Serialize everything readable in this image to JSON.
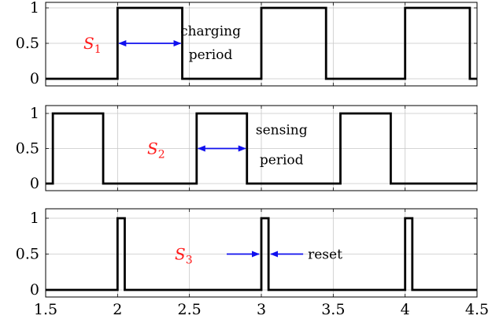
{
  "chart_data": {
    "type": "line",
    "x_ticks": [
      "1.5",
      "2",
      "2.5",
      "3",
      "3.5",
      "4",
      "4.5"
    ],
    "xlim": [
      1.5,
      4.5
    ],
    "grid": true,
    "colors": {
      "signal": "#000000",
      "arrow": "#1010ee",
      "label": "#ff1a1a"
    },
    "panels": [
      {
        "name": "S1",
        "ylim": [
          0,
          1
        ],
        "y_ticks": [
          "0",
          "0.5",
          "1"
        ],
        "label_main": "S",
        "label_sub": "1",
        "points": [
          [
            1.5,
            0
          ],
          [
            2.0,
            0
          ],
          [
            2.0,
            1
          ],
          [
            2.45,
            1
          ],
          [
            2.45,
            0
          ],
          [
            3.0,
            0
          ],
          [
            3.0,
            1
          ],
          [
            3.45,
            1
          ],
          [
            3.45,
            0
          ],
          [
            4.0,
            0
          ],
          [
            4.0,
            1
          ],
          [
            4.45,
            1
          ],
          [
            4.45,
            0
          ],
          [
            4.5,
            0
          ]
        ],
        "annotation": {
          "line1": "charging",
          "line2": "period",
          "arrow_from": 2.0,
          "arrow_to": 2.45,
          "arrow_y": 0.5
        }
      },
      {
        "name": "S2",
        "ylim": [
          0,
          1
        ],
        "y_ticks": [
          "0",
          "0.5",
          "1"
        ],
        "label_main": "S",
        "label_sub": "2",
        "points": [
          [
            1.5,
            0
          ],
          [
            1.55,
            0
          ],
          [
            1.55,
            1
          ],
          [
            1.9,
            1
          ],
          [
            1.9,
            0
          ],
          [
            2.55,
            0
          ],
          [
            2.55,
            1
          ],
          [
            2.9,
            1
          ],
          [
            2.9,
            0
          ],
          [
            3.55,
            0
          ],
          [
            3.55,
            1
          ],
          [
            3.9,
            1
          ],
          [
            3.9,
            0
          ],
          [
            4.5,
            0
          ]
        ],
        "annotation": {
          "line1": "sensing",
          "line2": "period",
          "arrow_from": 2.55,
          "arrow_to": 2.9,
          "arrow_y": 0.5
        }
      },
      {
        "name": "S3",
        "ylim": [
          0,
          1
        ],
        "y_ticks": [
          "0",
          "0.5",
          "1"
        ],
        "label_main": "S",
        "label_sub": "3",
        "points": [
          [
            1.5,
            0
          ],
          [
            2.0,
            0
          ],
          [
            2.0,
            1
          ],
          [
            2.05,
            1
          ],
          [
            2.05,
            0
          ],
          [
            3.0,
            0
          ],
          [
            3.0,
            1
          ],
          [
            3.05,
            1
          ],
          [
            3.05,
            0
          ],
          [
            4.0,
            0
          ],
          [
            4.0,
            1
          ],
          [
            4.05,
            1
          ],
          [
            4.05,
            0
          ],
          [
            4.5,
            0
          ]
        ],
        "annotation": {
          "line1": "reset"
        }
      }
    ]
  }
}
